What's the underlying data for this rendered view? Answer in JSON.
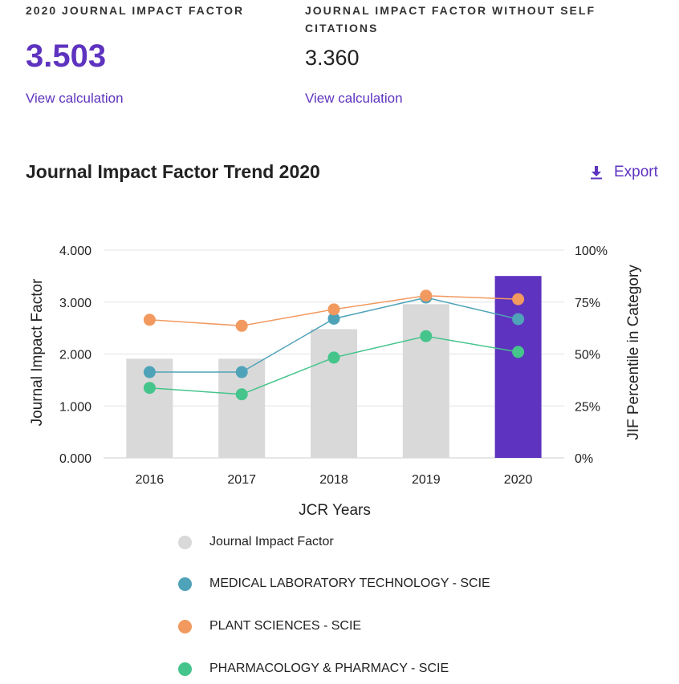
{
  "metrics": {
    "jif": {
      "label": "2020 JOURNAL IMPACT FACTOR",
      "value": "3.503",
      "link": "View calculation"
    },
    "jif_wo_self": {
      "label": "JOURNAL IMPACT FACTOR WITHOUT SELF CITATIONS",
      "value": "3.360",
      "link": "View calculation"
    }
  },
  "section": {
    "title": "Journal Impact Factor Trend 2020",
    "export_label": "Export"
  },
  "colors": {
    "accent": "#5e33bf",
    "bar": "#d9d9d9",
    "bar_highlight": "#5e33bf",
    "med_lab": "#4fa3b8",
    "plant": "#f2995f",
    "pharma": "#45c58b",
    "grid": "#e3e3e3"
  },
  "chart_data": {
    "type": "bar",
    "title": "Journal Impact Factor Trend 2020",
    "xlabel": "JCR Years",
    "ylabel": "Journal Impact Factor",
    "y2label": "JIF Percentile in Category",
    "categories": [
      "2016",
      "2017",
      "2018",
      "2019",
      "2020"
    ],
    "ylim": [
      0,
      4
    ],
    "y2lim": [
      0,
      100
    ],
    "yticks": [
      "0.000",
      "1.000",
      "2.000",
      "3.000",
      "4.000"
    ],
    "y2ticks": [
      "0%",
      "25%",
      "50%",
      "75%",
      "100%"
    ],
    "highlight_category": "2020",
    "bars": {
      "name": "Journal Impact Factor",
      "values": [
        1.91,
        1.91,
        2.48,
        2.96,
        3.503
      ]
    },
    "series": [
      {
        "name": "MEDICAL LABORATORY TECHNOLOGY - SCIE",
        "axis": "right",
        "color_key": "med_lab",
        "values": [
          41.3,
          41.3,
          67.0,
          77.2,
          66.8
        ]
      },
      {
        "name": "PLANT SCIENCES - SCIE",
        "axis": "right",
        "color_key": "plant",
        "values": [
          66.5,
          63.6,
          71.5,
          78.1,
          76.4
        ]
      },
      {
        "name": "PHARMACOLOGY & PHARMACY - SCIE",
        "axis": "right",
        "color_key": "pharma",
        "values": [
          33.7,
          30.6,
          48.3,
          58.6,
          51.0
        ]
      }
    ],
    "legend_position": "bottom"
  }
}
